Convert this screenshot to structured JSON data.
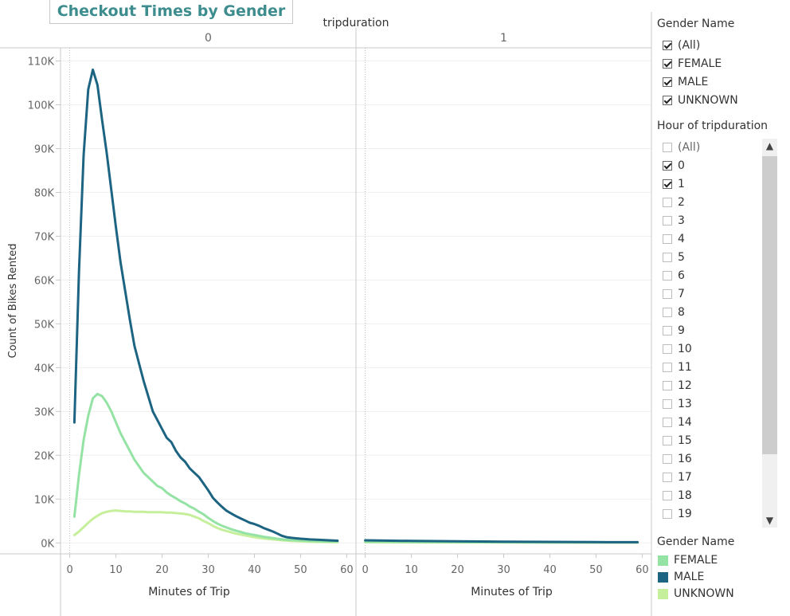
{
  "title": "Checkout Times by Gender",
  "chart_data": {
    "type": "line",
    "column_header_title": "tripduration",
    "panels": [
      {
        "header": "0",
        "xlabel": "Minutes of Trip",
        "xlim": [
          -2,
          62
        ],
        "xticks": [
          0,
          10,
          20,
          30,
          40,
          50,
          60
        ],
        "series": [
          {
            "name": "MALE",
            "color": "#1c6482",
            "x": [
              1,
              2,
              3,
              4,
              5,
              6,
              7,
              8,
              9,
              10,
              11,
              12,
              13,
              14,
              15,
              16,
              17,
              18,
              19,
              20,
              21,
              22,
              23,
              24,
              25,
              26,
              27,
              28,
              29,
              30,
              31,
              32,
              33,
              34,
              35,
              36,
              37,
              38,
              39,
              40,
              41,
              42,
              43,
              44,
              45,
              46,
              47,
              48,
              49,
              50,
              52,
              54,
              56,
              58
            ],
            "y": [
              27500,
              62000,
              88500,
              103500,
              108000,
              104500,
              96500,
              89000,
              80500,
              72000,
              64000,
              57500,
              51000,
              45000,
              41000,
              37000,
              33500,
              30000,
              28000,
              26000,
              24000,
              23000,
              21000,
              19500,
              18500,
              17000,
              16000,
              15000,
              13500,
              12000,
              10300,
              9200,
              8200,
              7300,
              6700,
              6100,
              5600,
              5100,
              4600,
              4300,
              3900,
              3400,
              3000,
              2600,
              2100,
              1600,
              1300,
              1150,
              1050,
              950,
              800,
              700,
              600,
              500
            ]
          },
          {
            "name": "FEMALE",
            "color": "#94e3a4",
            "x": [
              1,
              2,
              3,
              4,
              5,
              6,
              7,
              8,
              9,
              10,
              11,
              12,
              13,
              14,
              15,
              16,
              17,
              18,
              19,
              20,
              21,
              22,
              23,
              24,
              25,
              26,
              27,
              28,
              29,
              30,
              31,
              32,
              33,
              34,
              35,
              36,
              37,
              38,
              39,
              40,
              42,
              44,
              46,
              48,
              50,
              52,
              54,
              56,
              58
            ],
            "y": [
              6000,
              15500,
              23500,
              29000,
              33000,
              34000,
              33500,
              32000,
              30000,
              27500,
              25000,
              23000,
              21000,
              19000,
              17500,
              16000,
              15000,
              14000,
              13000,
              12500,
              11500,
              10800,
              10200,
              9500,
              9000,
              8300,
              7800,
              7100,
              6500,
              5700,
              5000,
              4400,
              3900,
              3500,
              3100,
              2800,
              2500,
              2200,
              2000,
              1800,
              1400,
              1100,
              800,
              650,
              550,
              450,
              380,
              320,
              280
            ]
          },
          {
            "name": "UNKNOWN",
            "color": "#c6ef9c",
            "x": [
              1,
              2,
              3,
              4,
              5,
              6,
              7,
              8,
              9,
              10,
              11,
              12,
              13,
              14,
              15,
              16,
              17,
              18,
              19,
              20,
              21,
              22,
              23,
              24,
              25,
              26,
              27,
              28,
              29,
              30,
              31,
              32,
              33,
              34,
              35,
              36,
              37,
              38,
              39,
              40,
              42,
              44,
              46,
              48,
              50,
              52,
              54,
              56,
              58
            ],
            "y": [
              1800,
              2600,
              3600,
              4600,
              5500,
              6200,
              6800,
              7100,
              7300,
              7400,
              7300,
              7200,
              7200,
              7100,
              7100,
              7100,
              7000,
              7000,
              7000,
              7000,
              6900,
              6900,
              6800,
              6700,
              6600,
              6400,
              6000,
              5600,
              5000,
              4500,
              3900,
              3400,
              3000,
              2700,
              2400,
              2100,
              1900,
              1700,
              1500,
              1300,
              1000,
              800,
              600,
              450,
              350,
              280,
              220,
              180,
              150
            ]
          }
        ]
      },
      {
        "header": "1",
        "xlabel": "Minutes of Trip",
        "xlim": [
          -2,
          62
        ],
        "xticks": [
          0,
          10,
          20,
          30,
          40,
          50,
          60
        ],
        "series": [
          {
            "name": "MALE",
            "color": "#1c6482",
            "x": [
              0,
              10,
              20,
              30,
              40,
              50,
              59
            ],
            "y": [
              600,
              450,
              350,
              280,
              220,
              180,
              150
            ]
          },
          {
            "name": "FEMALE",
            "color": "#94e3a4",
            "x": [
              0,
              10,
              20,
              30,
              40,
              50,
              59
            ],
            "y": [
              250,
              200,
              160,
              130,
              110,
              90,
              80
            ]
          },
          {
            "name": "UNKNOWN",
            "color": "#c6ef9c",
            "x": [
              0,
              10,
              20,
              30,
              40,
              50,
              59
            ],
            "y": [
              150,
              120,
              100,
              90,
              80,
              70,
              60
            ]
          }
        ]
      }
    ],
    "ylabel": "Count of Bikes Rented",
    "ylim": [
      -2500,
      113000
    ],
    "yticks": [
      0,
      10000,
      20000,
      30000,
      40000,
      50000,
      60000,
      70000,
      80000,
      90000,
      100000,
      110000
    ],
    "ytick_labels": [
      "0K",
      "10K",
      "20K",
      "30K",
      "40K",
      "50K",
      "60K",
      "70K",
      "80K",
      "90K",
      "100K",
      "110K"
    ],
    "grid": true,
    "legend_position": "right"
  },
  "gender_filter": {
    "title": "Gender Name",
    "items": [
      {
        "label": "(All)",
        "checked": true
      },
      {
        "label": "FEMALE",
        "checked": true
      },
      {
        "label": "MALE",
        "checked": true
      },
      {
        "label": "UNKNOWN",
        "checked": true
      }
    ]
  },
  "hour_filter": {
    "title": "Hour of tripduration",
    "items": [
      {
        "label": "(All)",
        "checked": false
      },
      {
        "label": "0",
        "checked": true
      },
      {
        "label": "1",
        "checked": true
      },
      {
        "label": "2",
        "checked": false
      },
      {
        "label": "3",
        "checked": false
      },
      {
        "label": "4",
        "checked": false
      },
      {
        "label": "5",
        "checked": false
      },
      {
        "label": "6",
        "checked": false
      },
      {
        "label": "7",
        "checked": false
      },
      {
        "label": "8",
        "checked": false
      },
      {
        "label": "9",
        "checked": false
      },
      {
        "label": "10",
        "checked": false
      },
      {
        "label": "11",
        "checked": false
      },
      {
        "label": "12",
        "checked": false
      },
      {
        "label": "13",
        "checked": false
      },
      {
        "label": "14",
        "checked": false
      },
      {
        "label": "15",
        "checked": false
      },
      {
        "label": "16",
        "checked": false
      },
      {
        "label": "17",
        "checked": false
      },
      {
        "label": "18",
        "checked": false
      },
      {
        "label": "19",
        "checked": false
      }
    ]
  },
  "color_legend": {
    "title": "Gender Name",
    "items": [
      {
        "label": "FEMALE",
        "color": "#94e3a4"
      },
      {
        "label": "MALE",
        "color": "#1c6482"
      },
      {
        "label": "UNKNOWN",
        "color": "#c6ef9c"
      }
    ]
  }
}
